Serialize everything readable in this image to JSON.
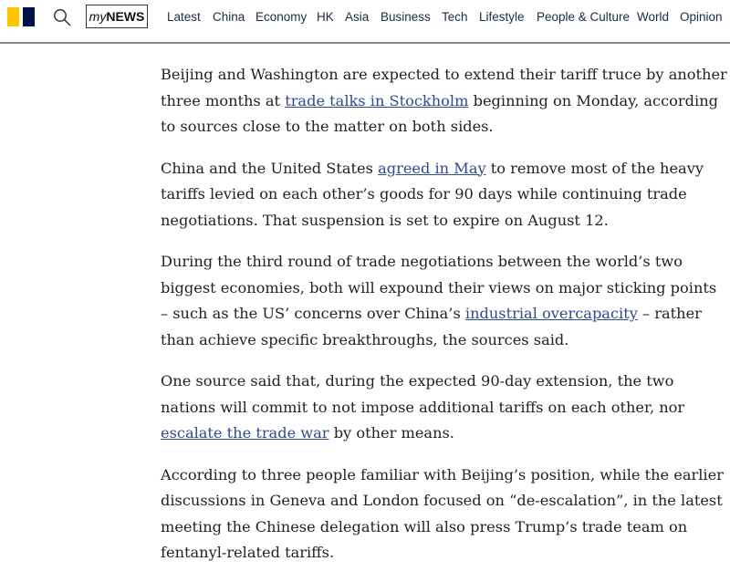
{
  "header": {
    "logo_colors": {
      "yellow": "#ffc600",
      "navy": "#001246"
    },
    "search_icon": "search-icon",
    "mynews": {
      "prefix": "my",
      "suffix": "NEWS"
    },
    "nav": [
      "Latest",
      "China",
      "Economy",
      "HK",
      "Asia",
      "Business",
      "Tech",
      "Lifestyle",
      "People & Culture",
      "World",
      "Opinion"
    ]
  },
  "article": {
    "link_color": "#2f4a8a",
    "paragraphs": [
      [
        {
          "text": "Beijing and Washington are expected to extend their tariff truce by another\nthree months at "
        },
        {
          "text": "trade talks in Stockholm",
          "link": true
        },
        {
          "text": " beginning on Monday, according\nto sources close to the matter on both sides."
        }
      ],
      [
        {
          "text": "China and the United States "
        },
        {
          "text": "agreed in May",
          "link": true
        },
        {
          "text": " to remove most of the heavy\ntariffs levied on each other’s goods for 90 days while continuing trade\nnegotiations. That suspension is set to expire on August 12."
        }
      ],
      [
        {
          "text": "During the third round of trade negotiations between the world’s two\nbiggest economies, both will expound their views on major sticking points\n– such as the US’ concerns over China’s "
        },
        {
          "text": "industrial overcapacity",
          "link": true
        },
        {
          "text": " – rather\nthan achieve specific breakthroughs, the sources said."
        }
      ],
      [
        {
          "text": "One source said that, during the expected 90-day extension, the two\nnations will commit to not impose additional tariffs on each other, nor\n"
        },
        {
          "text": "escalate the trade war",
          "link": true
        },
        {
          "text": " by other means."
        }
      ],
      [
        {
          "text": "According to three people familiar with Beijing’s position, while the earlier\ndiscussions in Geneva and London focused on “de-escalation”, in the latest\nmeeting the Chinese delegation will also press Trump’s trade team on\nfentanyl-related tariffs."
        }
      ]
    ]
  }
}
